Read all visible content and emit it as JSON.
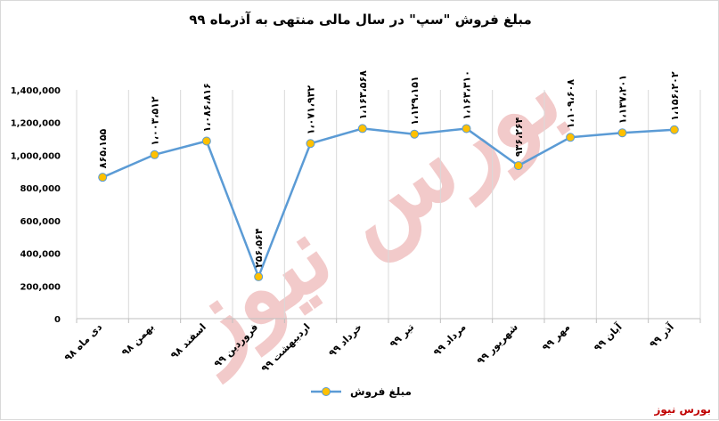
{
  "chart_data": {
    "type": "line",
    "title": "مبلغ فروش \"سپ\" در سال مالی منتهی به آذرماه ۹۹",
    "categories": [
      "دی ماه ۹۸",
      "بهمن ۹۸",
      "اسفند ۹۸",
      "فروردین ۹۹",
      "اردیبهشت ۹۹",
      "خرداد ۹۹",
      "تیر ۹۹",
      "مرداد ۹۹",
      "شهریور ۹۹",
      "مهر ۹۹",
      "آبان ۹۹",
      "آذر ۹۹"
    ],
    "series": [
      {
        "name": "مبلغ فروش",
        "values": [
          865155,
          1003512,
          1086816,
          256564,
          1071932,
          1163568,
          1129151,
          1163310,
          936264,
          1109608,
          1137201,
          1156202
        ],
        "labels": [
          "۸۶۵،۱۵۵",
          "۱،۰۰۳،۵۱۲",
          "۱،۰۸۶،۸۱۶",
          "۲۵۶،۵۶۴",
          "۱،۰۷۱،۹۳۲",
          "۱،۱۶۳،۵۶۸",
          "۱،۱۲۹،۱۵۱",
          "۱،۱۶۳،۳۱۰",
          "۹۳۶،۲۶۴",
          "۱،۱۰۹،۶۰۸",
          "۱،۱۳۷،۲۰۱",
          "۱،۱۵۶،۲۰۲"
        ]
      }
    ],
    "ylim": [
      0,
      1400000
    ],
    "yticks": [
      0,
      200000,
      400000,
      600000,
      800000,
      1000000,
      1200000,
      1400000
    ],
    "ytick_labels": [
      "0",
      "200,000",
      "400,000",
      "600,000",
      "800,000",
      "1,000,000",
      "1,200,000",
      "1,400,000"
    ],
    "grid": "vertical",
    "legend_position": "bottom",
    "colors": {
      "line": "#5b9bd5",
      "marker_fill": "#ffc000",
      "marker_stroke": "#5b9bd5",
      "grid": "#d9d9d9"
    }
  },
  "watermark": {
    "text": "بورس نیوز",
    "color": "#e8a0a0"
  },
  "source": {
    "text": "بورس نیوز",
    "color": "#c00000"
  }
}
